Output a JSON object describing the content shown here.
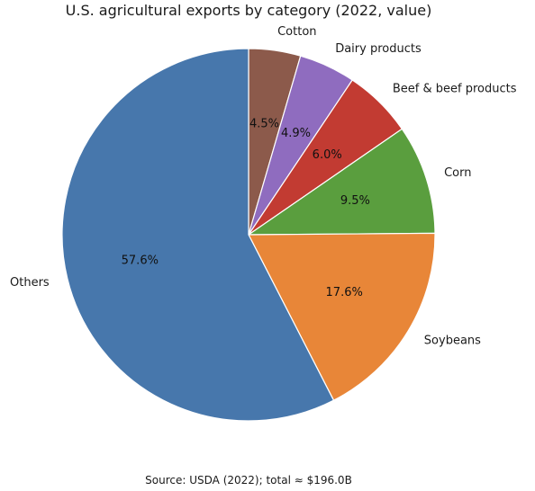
{
  "chart_data": {
    "type": "pie",
    "title": "U.S. agricultural exports by category (2022, value)",
    "source_note": "Source: USDA (2022); total ≈ $196.0B",
    "start_angle": "top, clockwise",
    "slices": [
      {
        "label": "Cotton",
        "value": 4.5,
        "pct_label": "4.5%",
        "color": "#8c5a4b"
      },
      {
        "label": "Dairy products",
        "value": 4.9,
        "pct_label": "4.9%",
        "color": "#8f6cbf"
      },
      {
        "label": "Beef & beef products",
        "value": 6.0,
        "pct_label": "6.0%",
        "color": "#c23b32"
      },
      {
        "label": "Corn",
        "value": 9.5,
        "pct_label": "9.5%",
        "color": "#5a9e3e"
      },
      {
        "label": "Soybeans",
        "value": 17.6,
        "pct_label": "17.6%",
        "color": "#e88638"
      },
      {
        "label": "Others",
        "value": 57.6,
        "pct_label": "57.6%",
        "color": "#4777ac"
      }
    ]
  }
}
